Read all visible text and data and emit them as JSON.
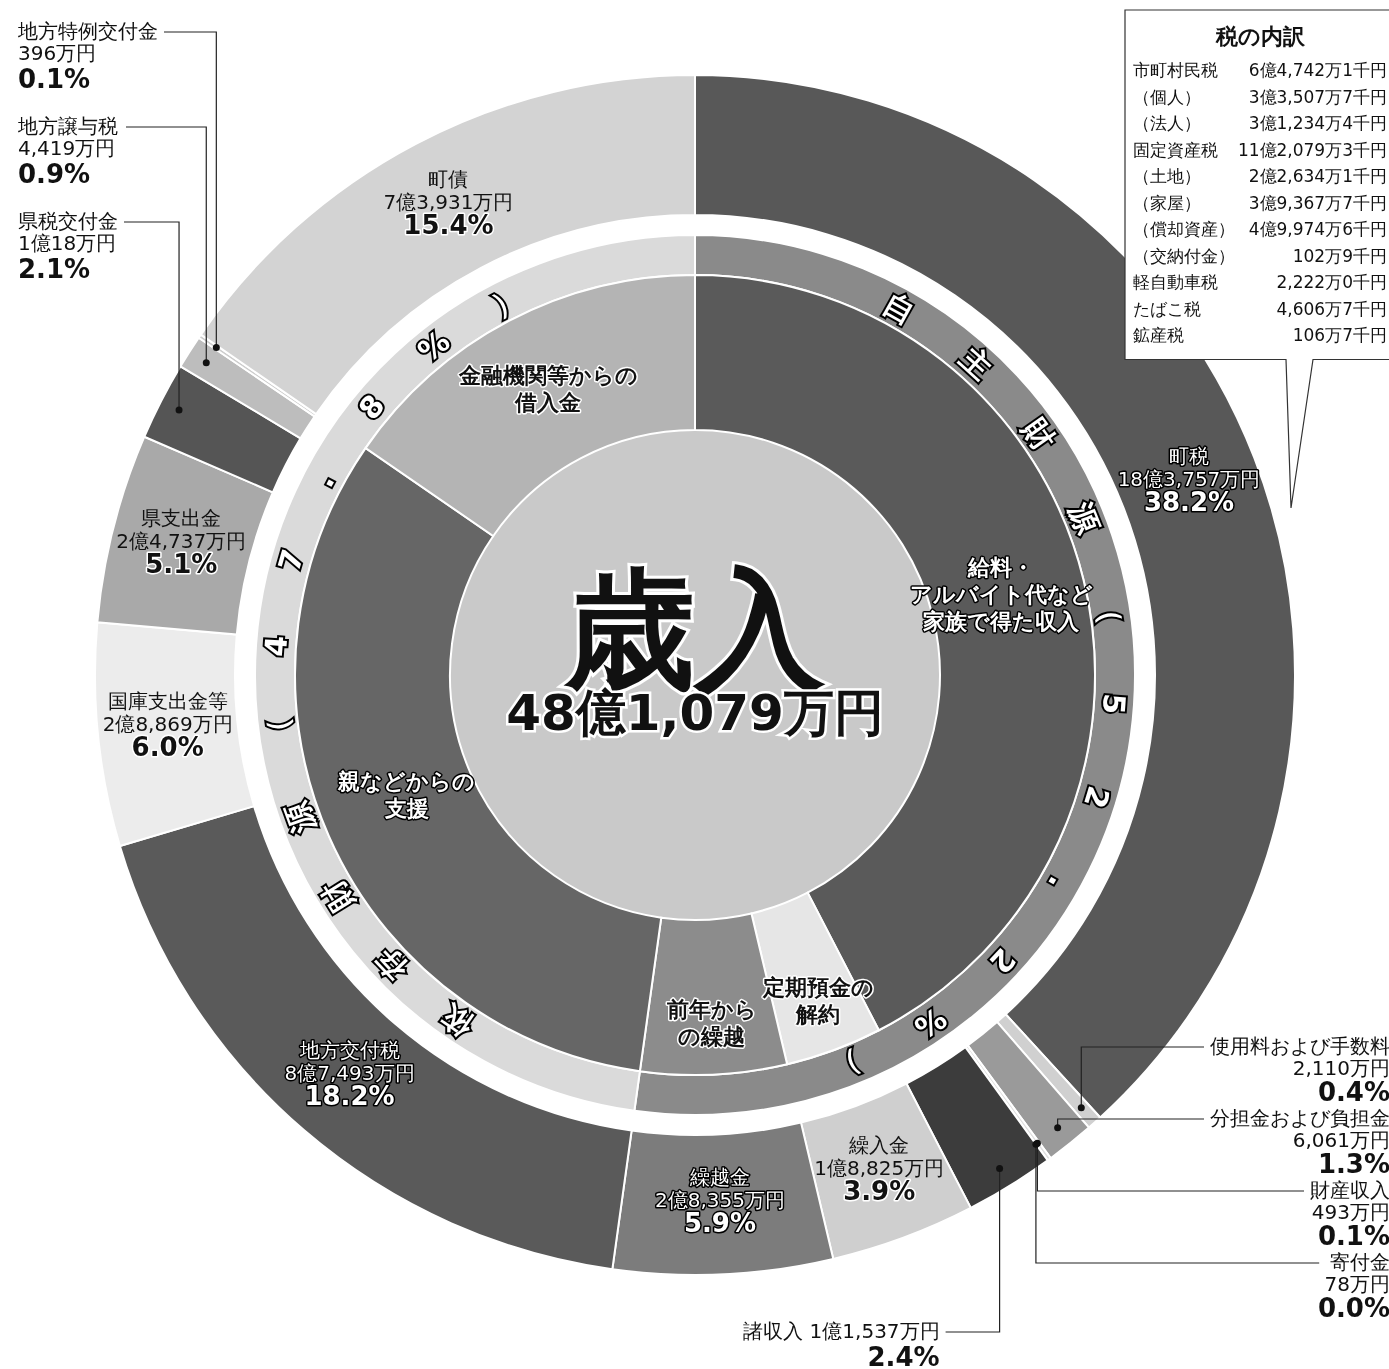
{
  "chart_data": [
    {
      "type": "donut",
      "title": "歳入",
      "subtitle": "48億1,079万円",
      "categories": [
        "町税",
        "使用料および手数料",
        "分担金および負担金",
        "財産収入",
        "寄付金",
        "諸収入",
        "繰入金",
        "繰越金",
        "地方交付税",
        "国庫支出金等",
        "県支出金",
        "県税交付金",
        "地方譲与税",
        "地方特例交付金",
        "町債"
      ],
      "values": [
        38.2,
        0.4,
        1.3,
        0.1,
        0.0,
        2.4,
        3.9,
        5.9,
        18.2,
        6.0,
        5.1,
        2.1,
        0.9,
        0.1,
        15.4
      ],
      "value_labels": [
        "38.2%",
        "0.4%",
        "1.3%",
        "0.1%",
        "0.0%",
        "2.4%",
        "3.9%",
        "5.9%",
        "18.2%",
        "6.0%",
        "5.1%",
        "2.1%",
        "0.9%",
        "0.1%",
        "15.4%"
      ],
      "annotations": [
        {
          "text": "18億3,757万円",
          "x": "町税"
        },
        {
          "text": "2,110万円",
          "x": "使用料および手数料"
        },
        {
          "text": "6,061万円",
          "x": "分担金および負担金"
        },
        {
          "text": "493万円",
          "x": "財産収入"
        },
        {
          "text": "78万円",
          "x": "寄付金"
        },
        {
          "text": "1億1,537万円",
          "x": "諸収入"
        },
        {
          "text": "1億8,825万円",
          "x": "繰入金"
        },
        {
          "text": "2億8,355万円",
          "x": "繰越金"
        },
        {
          "text": "8億7,493万円",
          "x": "地方交付税"
        },
        {
          "text": "2億8,869万円",
          "x": "国庫支出金等"
        },
        {
          "text": "2億4,737万円",
          "x": "県支出金"
        },
        {
          "text": "1億18万円",
          "x": "県税交付金"
        },
        {
          "text": "4,419万円",
          "x": "地方譲与税"
        },
        {
          "text": "396万円",
          "x": "地方特例交付金"
        },
        {
          "text": "7億3,931万円",
          "x": "町債"
        }
      ],
      "colors": [
        "#585858",
        "#d0d0d0",
        "#9a9a9a",
        "#e0e0e0",
        "#707070",
        "#3c3c3c",
        "#cfcfcf",
        "#7c7c7c",
        "#5a5a5a",
        "#ececec",
        "#a9a9a9",
        "#555555",
        "#bdbdbd",
        "#cdcdcd",
        "#d3d3d3"
      ]
    },
    {
      "type": "donut",
      "categories": [
        "自主財源（52.2%）",
        "依存財源（47.8%）"
      ],
      "values": [
        52.2,
        47.8
      ],
      "colors": [
        "#8a8a8a",
        "#dadada"
      ]
    },
    {
      "type": "donut",
      "categories": [
        "給料・アルバイト代など家族で得た収入",
        "定期預金の解約",
        "前年からの繰越",
        "親などからの支援",
        "金融機関等からの借入金"
      ],
      "values": [
        42.4,
        3.9,
        5.9,
        32.4,
        15.4
      ],
      "colors": [
        "#5a5a5a",
        "#e6e6e6",
        "#8c8c8c",
        "#666666",
        "#b4b4b4"
      ]
    },
    {
      "type": "other",
      "title": "税の内訳",
      "annotations": [
        "市町村民税 6億4,742万1千円",
        "（個人） 3億3,507万7千円",
        "（法人） 3億1,234万4千円",
        "固定資産税 11億2,079万3千円",
        "（土地） 2億2,634万1千円",
        "（家屋） 3億9,367万7千円",
        "（償却資産） 4億9,974万6千円",
        "（交納付金） 102万9千円",
        "軽自動車税 2,222万0千円",
        "たばこ税 4,606万7千円",
        "鉱産税 106万7千円"
      ]
    }
  ]
}
